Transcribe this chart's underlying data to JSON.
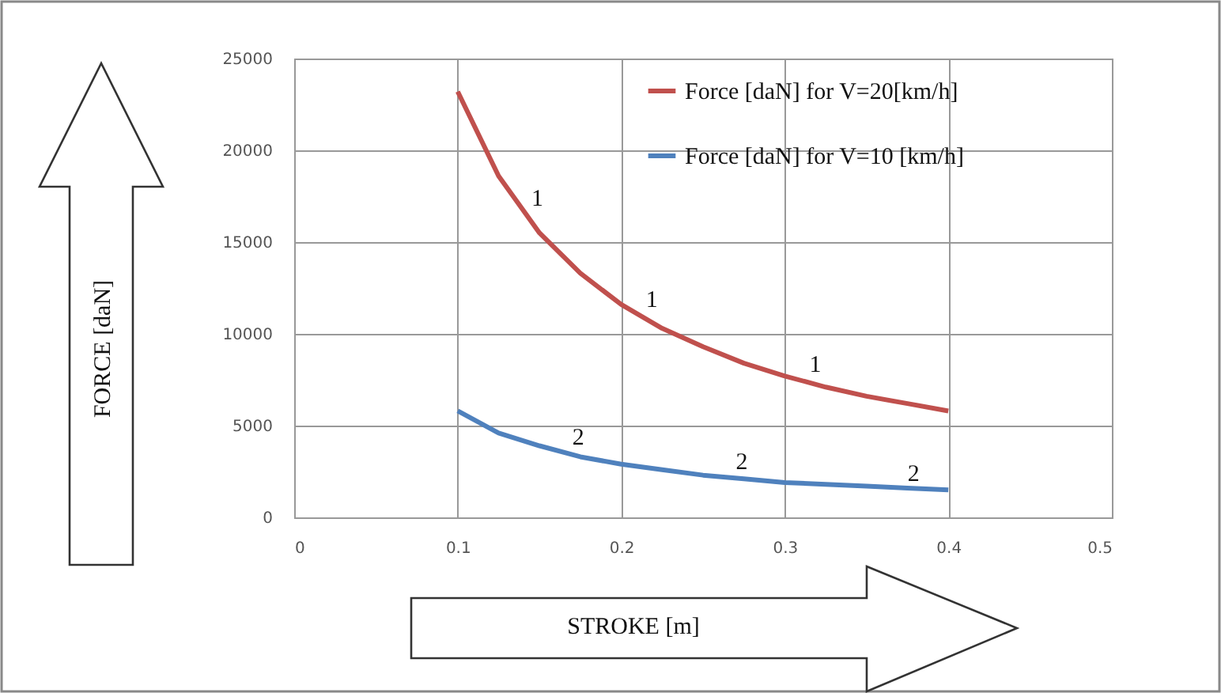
{
  "chart_data": {
    "type": "line",
    "xlabel": "STROKE [m]",
    "ylabel": "FORCE  [daN]",
    "x": [
      0.1,
      0.125,
      0.15,
      0.175,
      0.2,
      0.225,
      0.25,
      0.275,
      0.3,
      0.325,
      0.35,
      0.375,
      0.4
    ],
    "series": [
      {
        "name": "Force [daN] for V=20[km/h]",
        "color": "#c0504d",
        "values": [
          23200,
          18600,
          15500,
          13300,
          11600,
          10300,
          9300,
          8400,
          7700,
          7100,
          6600,
          6200,
          5800
        ]
      },
      {
        "name": "Force [daN] for V=10 [km/h]",
        "color": "#4f81bd",
        "values": [
          5800,
          4600,
          3900,
          3300,
          2900,
          2600,
          2300,
          2100,
          1900,
          1800,
          1700,
          1600,
          1500
        ]
      }
    ],
    "annotations": [
      {
        "text": "1",
        "x": 0.14,
        "y": 16570
      },
      {
        "text": "1",
        "x": 0.21,
        "y": 11050
      },
      {
        "text": "1",
        "x": 0.31,
        "y": 7480
      },
      {
        "text": "2",
        "x": 0.165,
        "y": 3520
      },
      {
        "text": "2",
        "x": 0.265,
        "y": 2190
      },
      {
        "text": "2",
        "x": 0.37,
        "y": 1570
      }
    ],
    "xlim": [
      0,
      0.5
    ],
    "xticks": [
      0,
      0.1,
      0.2,
      0.3,
      0.4,
      0.5
    ],
    "ylim": [
      0,
      25000
    ],
    "yticks": [
      0,
      5000,
      10000,
      15000,
      20000,
      25000
    ],
    "grid": true,
    "legend": "top right",
    "marker": "none",
    "line_style": "solid"
  }
}
